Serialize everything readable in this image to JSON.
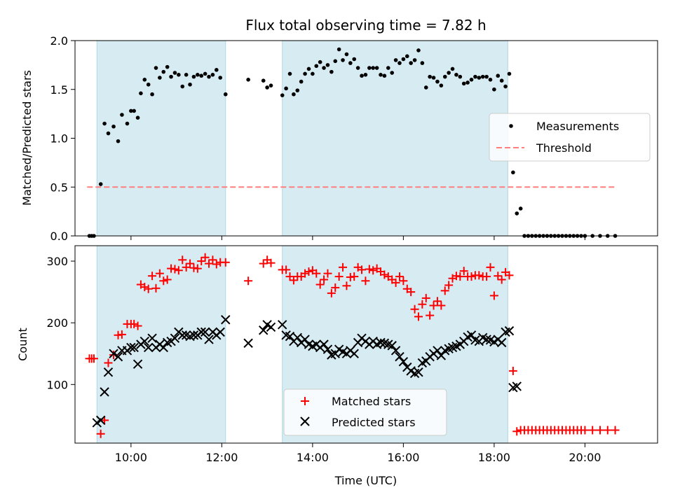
{
  "title": "Flux total observing time = 7.82 h",
  "chart_data": [
    {
      "type": "scatter",
      "ylabel": "Matched/Predicted stars",
      "ylim": [
        0,
        2.0
      ],
      "xlim": [
        "08:46",
        "21:36"
      ],
      "yticks": [
        0.0,
        0.5,
        1.0,
        1.5,
        2.0
      ],
      "ytick_labels": [
        "0.0",
        "0.5",
        "1.0",
        "1.5",
        "2.0"
      ],
      "legend_placement": "center-right",
      "shaded_spans": [
        [
          "09:15",
          "12:05"
        ],
        [
          "13:20",
          "18:18"
        ]
      ],
      "threshold": {
        "name": "Threshold",
        "value": 0.5,
        "x": [
          "09:02",
          "20:40"
        ],
        "color": "#ff7f7f"
      },
      "series": [
        {
          "name": "Measurements",
          "color": "#000000",
          "x": [
            "09:05",
            "09:08",
            "09:11",
            "09:20",
            "09:25",
            "09:30",
            "09:37",
            "09:43",
            "09:48",
            "09:55",
            "10:00",
            "10:04",
            "10:09",
            "10:13",
            "10:18",
            "10:23",
            "10:28",
            "10:33",
            "10:38",
            "10:43",
            "10:48",
            "10:53",
            "10:58",
            "11:03",
            "11:08",
            "11:13",
            "11:18",
            "11:23",
            "11:28",
            "11:33",
            "11:38",
            "11:43",
            "11:48",
            "11:53",
            "11:58",
            "12:05",
            "12:35",
            "12:55",
            "13:00",
            "13:05",
            "13:20",
            "13:25",
            "13:30",
            "13:35",
            "13:40",
            "13:45",
            "13:50",
            "13:55",
            "14:00",
            "14:05",
            "14:10",
            "14:15",
            "14:20",
            "14:25",
            "14:30",
            "14:35",
            "14:40",
            "14:45",
            "14:50",
            "14:55",
            "15:00",
            "15:05",
            "15:10",
            "15:15",
            "15:20",
            "15:25",
            "15:30",
            "15:35",
            "15:40",
            "15:45",
            "15:50",
            "15:55",
            "16:00",
            "16:05",
            "16:10",
            "16:15",
            "16:20",
            "16:25",
            "16:30",
            "16:35",
            "16:40",
            "16:45",
            "16:50",
            "16:55",
            "17:00",
            "17:05",
            "17:10",
            "17:15",
            "17:20",
            "17:25",
            "17:30",
            "17:35",
            "17:40",
            "17:45",
            "17:50",
            "17:55",
            "18:00",
            "18:05",
            "18:10",
            "18:15",
            "18:20",
            "18:25",
            "18:30",
            "18:35",
            "18:40",
            "18:45",
            "18:50",
            "18:55",
            "19:00",
            "19:05",
            "19:10",
            "19:15",
            "19:20",
            "19:25",
            "19:30",
            "19:35",
            "19:40",
            "19:45",
            "19:50",
            "19:55",
            "20:00",
            "20:10",
            "20:20",
            "20:30",
            "20:40"
          ],
          "values": [
            0.0,
            0.0,
            0.0,
            0.53,
            1.15,
            1.05,
            1.12,
            0.97,
            1.24,
            1.15,
            1.28,
            1.28,
            1.21,
            1.46,
            1.6,
            1.55,
            1.45,
            1.72,
            1.62,
            1.68,
            1.73,
            1.63,
            1.67,
            1.65,
            1.53,
            1.65,
            1.55,
            1.63,
            1.65,
            1.64,
            1.66,
            1.63,
            1.65,
            1.7,
            1.62,
            1.45,
            1.6,
            1.59,
            1.52,
            1.54,
            1.44,
            1.51,
            1.66,
            1.45,
            1.49,
            1.58,
            1.66,
            1.71,
            1.66,
            1.74,
            1.78,
            1.72,
            1.75,
            1.68,
            1.79,
            1.91,
            1.8,
            1.86,
            1.77,
            1.81,
            1.72,
            1.64,
            1.65,
            1.72,
            1.72,
            1.72,
            1.65,
            1.64,
            1.72,
            1.67,
            1.8,
            1.77,
            1.81,
            1.84,
            1.77,
            1.8,
            1.9,
            1.77,
            1.52,
            1.63,
            1.62,
            1.58,
            1.54,
            1.63,
            1.67,
            1.71,
            1.65,
            1.63,
            1.56,
            1.57,
            1.6,
            1.63,
            1.62,
            1.63,
            1.63,
            1.6,
            1.5,
            1.64,
            1.59,
            1.53,
            1.66,
            0.65,
            0.23,
            0.28,
            0.0,
            0.0,
            0.0,
            0.0,
            0.0,
            0.0,
            0.0,
            0.0,
            0.0,
            0.0,
            0.0,
            0.0,
            0.0,
            0.0,
            0.0,
            0.0,
            0.0,
            0.0,
            0.0,
            0.0,
            0.0
          ]
        }
      ]
    },
    {
      "type": "scatter",
      "xlabel": "Time (UTC)",
      "ylabel": "Count",
      "ylim": [
        5,
        325
      ],
      "xlim": [
        "08:46",
        "21:36"
      ],
      "yticks": [
        100,
        200,
        300
      ],
      "ytick_labels": [
        "100",
        "200",
        "300"
      ],
      "xticks": [
        "10:00",
        "12:00",
        "14:00",
        "16:00",
        "18:00",
        "20:00"
      ],
      "legend_placement": "lower-center",
      "shaded_spans": [
        [
          "09:15",
          "12:05"
        ],
        [
          "13:20",
          "18:18"
        ]
      ],
      "series": [
        {
          "name": "Matched stars",
          "marker": "plus",
          "color": "#ff0000",
          "x": [
            "09:05",
            "09:08",
            "09:11",
            "09:20",
            "09:25",
            "09:30",
            "09:37",
            "09:43",
            "09:48",
            "09:55",
            "10:00",
            "10:04",
            "10:09",
            "10:13",
            "10:18",
            "10:23",
            "10:28",
            "10:33",
            "10:38",
            "10:43",
            "10:48",
            "10:53",
            "10:58",
            "11:03",
            "11:08",
            "11:13",
            "11:18",
            "11:23",
            "11:28",
            "11:33",
            "11:38",
            "11:43",
            "11:48",
            "11:53",
            "11:58",
            "12:05",
            "12:35",
            "12:55",
            "13:00",
            "13:05",
            "13:20",
            "13:25",
            "13:30",
            "13:35",
            "13:40",
            "13:45",
            "13:50",
            "13:55",
            "14:00",
            "14:05",
            "14:10",
            "14:15",
            "14:20",
            "14:25",
            "14:30",
            "14:35",
            "14:40",
            "14:45",
            "14:50",
            "14:55",
            "15:00",
            "15:05",
            "15:10",
            "15:15",
            "15:20",
            "15:25",
            "15:30",
            "15:35",
            "15:40",
            "15:45",
            "15:50",
            "15:55",
            "16:00",
            "16:05",
            "16:10",
            "16:15",
            "16:20",
            "16:25",
            "16:30",
            "16:35",
            "16:40",
            "16:45",
            "16:50",
            "16:55",
            "17:00",
            "17:05",
            "17:10",
            "17:15",
            "17:20",
            "17:25",
            "17:30",
            "17:35",
            "17:40",
            "17:45",
            "17:50",
            "17:55",
            "18:00",
            "18:05",
            "18:10",
            "18:15",
            "18:20",
            "18:25",
            "18:30",
            "18:35",
            "18:40",
            "18:45",
            "18:50",
            "18:55",
            "19:00",
            "19:05",
            "19:10",
            "19:15",
            "19:20",
            "19:25",
            "19:30",
            "19:35",
            "19:40",
            "19:45",
            "19:50",
            "19:55",
            "20:00",
            "20:10",
            "20:20",
            "20:30",
            "20:40"
          ],
          "values": [
            142,
            142,
            142,
            20,
            42,
            135,
            148,
            180,
            181,
            198,
            198,
            198,
            195,
            262,
            258,
            255,
            276,
            256,
            280,
            268,
            270,
            288,
            287,
            285,
            302,
            290,
            296,
            289,
            288,
            300,
            306,
            296,
            302,
            295,
            298,
            298,
            268,
            296,
            302,
            297,
            286,
            286,
            275,
            269,
            275,
            275,
            280,
            283,
            285,
            280,
            262,
            270,
            280,
            248,
            257,
            275,
            290,
            260,
            274,
            275,
            290,
            286,
            268,
            287,
            285,
            288,
            283,
            278,
            275,
            270,
            265,
            275,
            268,
            255,
            250,
            222,
            210,
            230,
            240,
            212,
            228,
            235,
            228,
            252,
            261,
            272,
            276,
            275,
            284,
            275,
            275,
            277,
            277,
            275,
            275,
            290,
            244,
            276,
            270,
            282,
            277,
            122,
            24,
            26,
            26,
            26,
            26,
            26,
            26,
            26,
            26,
            26,
            26,
            26,
            26,
            26,
            26,
            26,
            26,
            26,
            26,
            26,
            26,
            26,
            26
          ]
        },
        {
          "name": "Predicted stars",
          "marker": "x",
          "color": "#000000",
          "x": [
            "09:15",
            "09:20",
            "09:25",
            "09:30",
            "09:37",
            "09:43",
            "09:48",
            "09:55",
            "10:00",
            "10:04",
            "10:09",
            "10:13",
            "10:18",
            "10:23",
            "10:28",
            "10:33",
            "10:38",
            "10:43",
            "10:48",
            "10:53",
            "10:58",
            "11:03",
            "11:08",
            "11:13",
            "11:18",
            "11:23",
            "11:28",
            "11:33",
            "11:38",
            "11:43",
            "11:48",
            "11:53",
            "11:58",
            "12:05",
            "12:35",
            "12:55",
            "13:00",
            "13:05",
            "13:20",
            "13:25",
            "13:30",
            "13:35",
            "13:40",
            "13:45",
            "13:50",
            "13:55",
            "14:00",
            "14:05",
            "14:10",
            "14:15",
            "14:20",
            "14:25",
            "14:30",
            "14:35",
            "14:40",
            "14:45",
            "14:50",
            "14:55",
            "15:00",
            "15:05",
            "15:10",
            "15:15",
            "15:20",
            "15:25",
            "15:30",
            "15:35",
            "15:40",
            "15:45",
            "15:50",
            "15:55",
            "16:00",
            "16:05",
            "16:10",
            "16:15",
            "16:20",
            "16:25",
            "16:30",
            "16:35",
            "16:40",
            "16:45",
            "16:50",
            "16:55",
            "17:00",
            "17:05",
            "17:10",
            "17:15",
            "17:20",
            "17:25",
            "17:30",
            "17:35",
            "17:40",
            "17:45",
            "17:50",
            "17:55",
            "18:00",
            "18:05",
            "18:10",
            "18:15",
            "18:20",
            "18:25",
            "18:30"
          ],
          "values": [
            38,
            42,
            88,
            120,
            150,
            145,
            155,
            155,
            160,
            160,
            133,
            165,
            170,
            160,
            175,
            160,
            165,
            160,
            168,
            170,
            175,
            185,
            180,
            180,
            178,
            180,
            180,
            185,
            185,
            173,
            185,
            180,
            185,
            205,
            167,
            188,
            197,
            193,
            197,
            180,
            178,
            170,
            176,
            168,
            173,
            165,
            162,
            165,
            160,
            165,
            157,
            148,
            150,
            157,
            153,
            150,
            155,
            150,
            168,
            175,
            170,
            165,
            170,
            165,
            168,
            167,
            165,
            163,
            155,
            145,
            137,
            128,
            122,
            118,
            120,
            135,
            138,
            145,
            150,
            155,
            147,
            155,
            158,
            160,
            162,
            165,
            170,
            177,
            180,
            172,
            170,
            176,
            173,
            172,
            169,
            173,
            168,
            185,
            187,
            95,
            97
          ]
        }
      ]
    }
  ]
}
